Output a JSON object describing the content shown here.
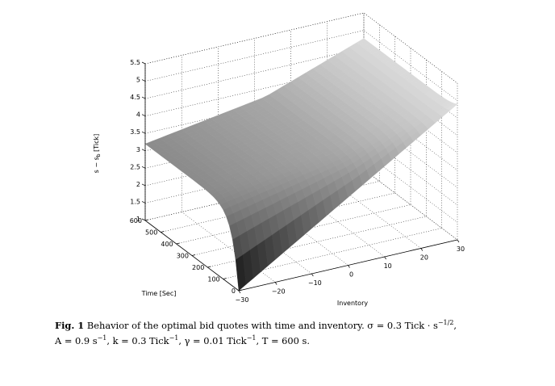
{
  "chart_data": {
    "type": "surface",
    "zlabel": "s − s_b [Tick]",
    "zlabel_main": "s − s",
    "zlabel_sub": "b",
    "zlabel_unit": " [Tick]",
    "xlabel": "Inventory",
    "ylabel": "Time [Sec]",
    "x_ticks": [
      "−30",
      "−20",
      "−10",
      "0",
      "10",
      "20",
      "30"
    ],
    "x_tick_values": [
      -30,
      -20,
      -10,
      0,
      10,
      20,
      30
    ],
    "y_ticks": [
      "0",
      "100",
      "200",
      "300",
      "400",
      "500",
      "600"
    ],
    "y_tick_values": [
      0,
      100,
      200,
      300,
      400,
      500,
      600
    ],
    "z_ticks": [
      "1",
      "1.5",
      "2",
      "2.5",
      "3",
      "3.5",
      "4",
      "4.5",
      "5",
      "5.5"
    ],
    "z_tick_values": [
      1,
      1.5,
      2,
      2.5,
      3,
      3.5,
      4,
      4.5,
      5,
      5.5
    ],
    "xlim": [
      -30,
      30
    ],
    "ylim": [
      0,
      600
    ],
    "zlim": [
      1,
      5.5
    ],
    "grid": true,
    "colormap": "gray",
    "sample_points": [
      {
        "inventory": -30,
        "time": 600,
        "value": 3.2
      },
      {
        "inventory": -30,
        "time": 0,
        "value": 1.0
      },
      {
        "inventory": 30,
        "time": 0,
        "value": 4.9
      },
      {
        "inventory": 30,
        "time": 600,
        "value": 5.2
      },
      {
        "inventory": 0,
        "time": 300,
        "value": 3.3
      }
    ]
  },
  "caption": {
    "fig_label": "Fig. 1",
    "line1": "Behavior of the optimal bid quotes with time and inventory. σ = 0.3   Tick · s",
    "line1_sup": "−1/2",
    "line1_end": ",",
    "line2_a": "A = 0.9   s",
    "line2_a_sup": "−1",
    "line2_b": ", k = 0.3   Tick",
    "line2_b_sup": "−1",
    "line2_c": ", γ = 0.01   Tick",
    "line2_c_sup": "−1",
    "line2_d": ", T = 600   s."
  }
}
